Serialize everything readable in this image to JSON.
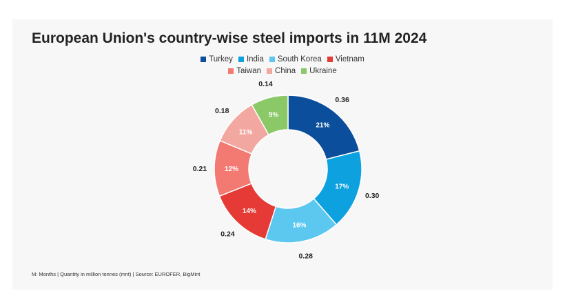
{
  "chart_data": {
    "type": "pie",
    "title": "European Union's country-wise steel imports in 11M 2024",
    "categories": [
      "Turkey",
      "India",
      "South Korea",
      "Vietnam",
      "Taiwan",
      "China",
      "Ukraine"
    ],
    "values": [
      0.36,
      0.3,
      0.28,
      0.24,
      0.21,
      0.18,
      0.14
    ],
    "percent_labels": [
      "21%",
      "17%",
      "16%",
      "14%",
      "12%",
      "11%",
      "9%"
    ],
    "value_labels": [
      "0.36",
      "0.30",
      "0.28",
      "0.24",
      "0.21",
      "0.18",
      "0.14"
    ],
    "colors": [
      "#0b4f9c",
      "#0ea1df",
      "#5cc8f0",
      "#e53a35",
      "#f27a72",
      "#f2a7a1",
      "#8bc867"
    ],
    "donut": true,
    "legend_position": "top"
  },
  "footer": "M: Months | Quantity in million tonnes (mnt) | Source: EUROFER, BigMint"
}
